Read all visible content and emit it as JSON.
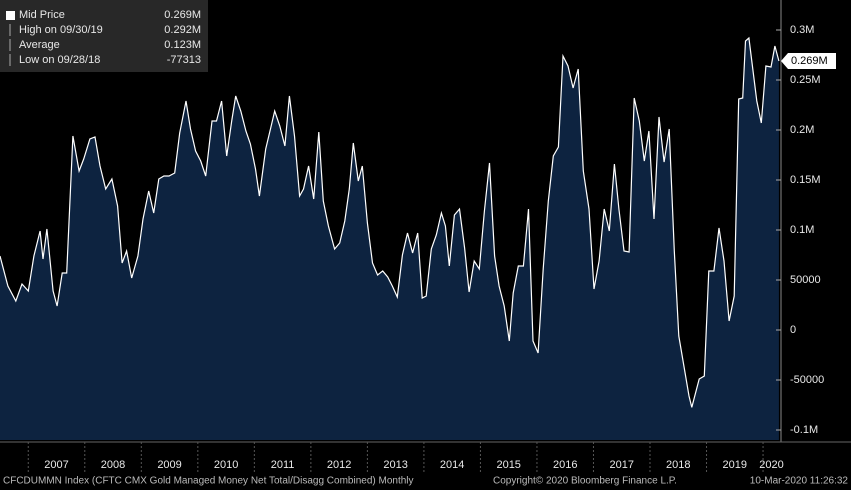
{
  "chart_data": {
    "type": "area",
    "legend_items": [
      {
        "label": "Mid Price",
        "value": "0.269M"
      },
      {
        "label": "High on 09/30/19",
        "value": "0.292M"
      },
      {
        "label": "Average",
        "value": "0.123M"
      },
      {
        "label": "Low on 09/28/18",
        "value": "-77313"
      }
    ],
    "x": [
      2006.5,
      2006.64,
      2006.78,
      2006.89,
      2007.0,
      2007.1,
      2007.21,
      2007.26,
      2007.33,
      2007.44,
      2007.51,
      2007.6,
      2007.68,
      2007.79,
      2007.9,
      2007.98,
      2008.09,
      2008.18,
      2008.27,
      2008.37,
      2008.48,
      2008.58,
      2008.66,
      2008.74,
      2008.83,
      2008.94,
      2009.03,
      2009.13,
      2009.22,
      2009.31,
      2009.4,
      2009.49,
      2009.59,
      2009.68,
      2009.79,
      2009.87,
      2009.96,
      2010.05,
      2010.14,
      2010.25,
      2010.33,
      2010.42,
      2010.51,
      2010.6,
      2010.67,
      2010.76,
      2010.85,
      2010.93,
      2011.02,
      2011.09,
      2011.2,
      2011.29,
      2011.36,
      2011.45,
      2011.54,
      2011.62,
      2011.71,
      2011.8,
      2011.87,
      2011.96,
      2012.05,
      2012.14,
      2012.22,
      2012.31,
      2012.42,
      2012.51,
      2012.6,
      2012.68,
      2012.75,
      2012.84,
      2012.91,
      2013.0,
      2013.09,
      2013.18,
      2013.27,
      2013.36,
      2013.44,
      2013.53,
      2013.62,
      2013.71,
      2013.8,
      2013.89,
      2013.97,
      2014.04,
      2014.13,
      2014.22,
      2014.31,
      2014.38,
      2014.45,
      2014.54,
      2014.63,
      2014.72,
      2014.8,
      2014.89,
      2014.98,
      2015.07,
      2015.16,
      2015.25,
      2015.33,
      2015.42,
      2015.51,
      2015.58,
      2015.67,
      2015.76,
      2015.85,
      2015.93,
      2016.02,
      2016.11,
      2016.2,
      2016.29,
      2016.38,
      2016.46,
      2016.55,
      2016.64,
      2016.73,
      2016.82,
      2016.92,
      2017.01,
      2017.1,
      2017.19,
      2017.28,
      2017.37,
      2017.45,
      2017.54,
      2017.63,
      2017.72,
      2017.81,
      2017.9,
      2017.98,
      2018.07,
      2018.16,
      2018.25,
      2018.34,
      2018.43,
      2018.51,
      2018.6,
      2018.69,
      2018.74,
      2018.87,
      2018.96,
      2019.04,
      2019.13,
      2019.22,
      2019.31,
      2019.4,
      2019.49,
      2019.57,
      2019.64,
      2019.69,
      2019.75,
      2019.89,
      2019.97,
      2020.05,
      2020.14,
      2020.21,
      2020.28
    ],
    "series": [
      {
        "name": "Mid Price",
        "color": "#ffffff",
        "fill": "#0d2340",
        "values": [
          74000,
          44000,
          29000,
          46000,
          39000,
          74000,
          99000,
          71000,
          101000,
          39000,
          24000,
          57000,
          57000,
          194000,
          159000,
          171000,
          191000,
          193000,
          164000,
          141000,
          151000,
          124000,
          67000,
          79000,
          52000,
          74000,
          111000,
          139000,
          117000,
          151000,
          154000,
          154000,
          157000,
          197000,
          229000,
          201000,
          179000,
          169000,
          154000,
          209000,
          209000,
          229000,
          174000,
          209000,
          234000,
          219000,
          199000,
          186000,
          161000,
          134000,
          181000,
          202000,
          219000,
          204000,
          184000,
          234000,
          194000,
          134000,
          141000,
          164000,
          131000,
          198000,
          129000,
          104000,
          81000,
          87000,
          109000,
          141000,
          187000,
          149000,
          164000,
          107000,
          67000,
          55000,
          59000,
          53000,
          44000,
          33000,
          75000,
          97000,
          77000,
          97000,
          32000,
          34000,
          81000,
          95000,
          117000,
          104000,
          64000,
          115000,
          121000,
          82000,
          38000,
          69000,
          61000,
          119000,
          167000,
          74000,
          44000,
          24000,
          -11000,
          37000,
          64000,
          64000,
          121000,
          -11000,
          -23000,
          61000,
          129000,
          174000,
          183000,
          274000,
          264000,
          242000,
          261000,
          159000,
          121000,
          41000,
          69000,
          121000,
          99000,
          166000,
          121000,
          79000,
          78000,
          232000,
          209000,
          169000,
          199000,
          111000,
          213000,
          168000,
          201000,
          79000,
          -6000,
          -36000,
          -66000,
          -77313,
          -49000,
          -46000,
          59000,
          59000,
          102000,
          69000,
          9000,
          34000,
          231000,
          232000,
          289000,
          292000,
          229000,
          207000,
          264000,
          263000,
          284000,
          269000
        ]
      }
    ],
    "xlim": [
      2006.5,
      2020.3
    ],
    "xticks": [
      2007,
      2008,
      2009,
      2010,
      2011,
      2012,
      2013,
      2014,
      2015,
      2016,
      2017,
      2018,
      2019,
      2020
    ],
    "ylim": [
      -110000,
      330000
    ],
    "yticks": [
      {
        "value": 300000,
        "label": "0.3M"
      },
      {
        "value": 250000,
        "label": "0.25M"
      },
      {
        "value": 200000,
        "label": "0.2M"
      },
      {
        "value": 150000,
        "label": "0.15M"
      },
      {
        "value": 100000,
        "label": "0.1M"
      },
      50000,
      0,
      -50000,
      {
        "value": -100000,
        "label": "-0.1M"
      }
    ],
    "annotations": [
      {
        "text": "0.269M",
        "value": 269000
      }
    ],
    "footer": {
      "description": "CFCDUMMN Index (CFTC CMX Gold Managed Money Net Total/Disagg Combined)  Monthly",
      "copyright": "Copyright© 2020 Bloomberg Finance L.P.",
      "timestamp": "10-Mar-2020 11:26:32"
    }
  }
}
